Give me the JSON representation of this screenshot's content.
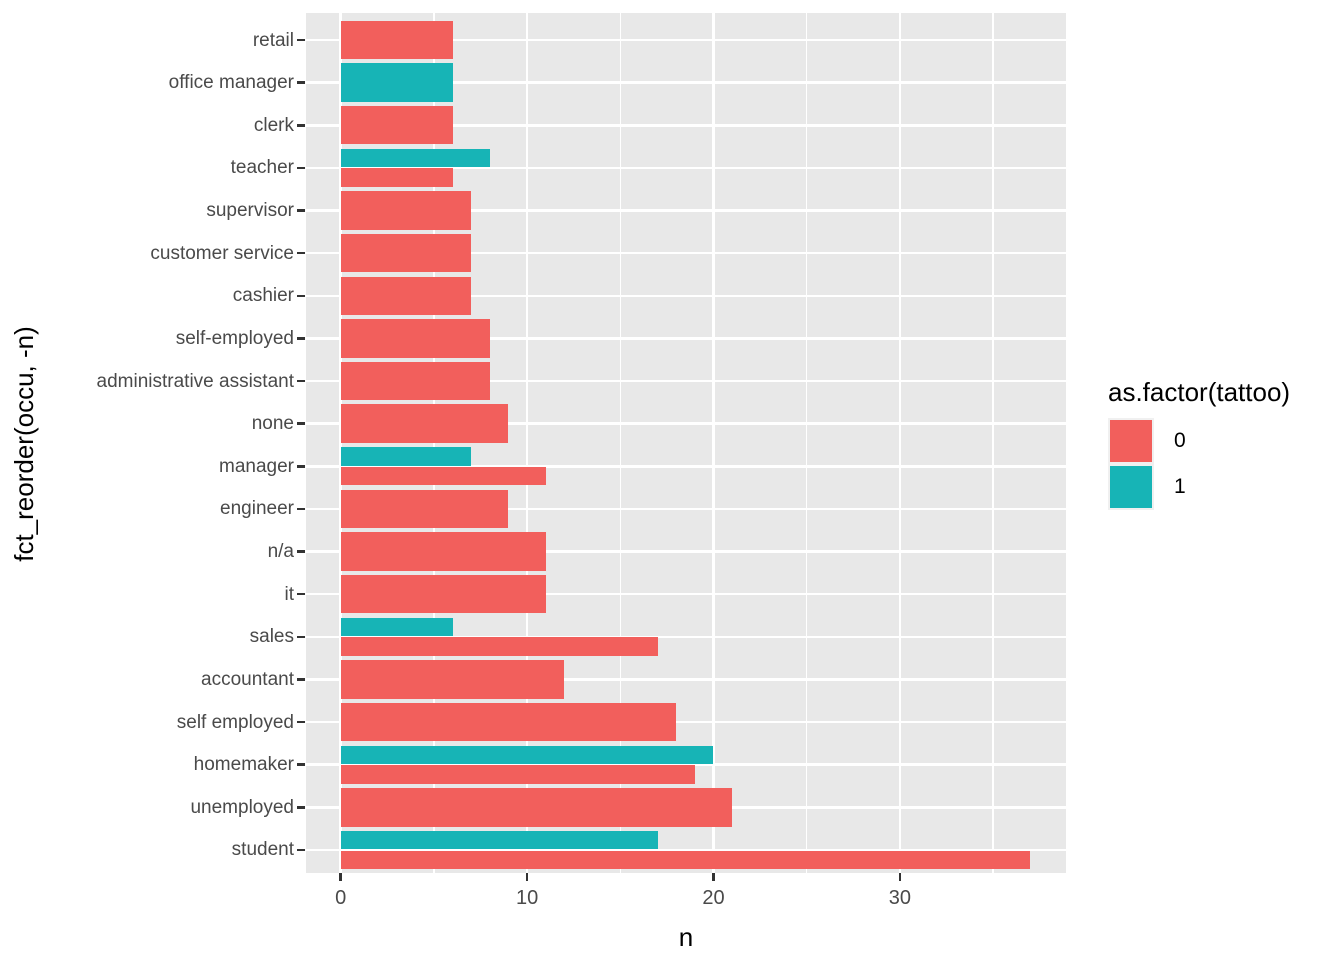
{
  "chart_data": {
    "type": "bar",
    "orientation": "horizontal",
    "title": "",
    "xlabel": "n",
    "ylabel": "fct_reorder(occu, -n)",
    "x_axis": {
      "major_ticks": [
        0,
        10,
        20,
        30
      ],
      "minor_gridlines": [
        5,
        15,
        25,
        35
      ],
      "range": [
        -1.85,
        38.85
      ]
    },
    "grid": true,
    "legend": {
      "title": "as.factor(tattoo)",
      "position": "right",
      "entries": [
        {
          "label": "0",
          "color": "#F25F5C"
        },
        {
          "label": "1",
          "color": "#17B4B6"
        }
      ]
    },
    "categories": [
      {
        "label": "retail",
        "bars": [
          {
            "group": "0",
            "value": 6
          }
        ]
      },
      {
        "label": "office manager",
        "bars": [
          {
            "group": "1",
            "value": 6
          }
        ]
      },
      {
        "label": "clerk",
        "bars": [
          {
            "group": "0",
            "value": 6
          }
        ]
      },
      {
        "label": "teacher",
        "bars": [
          {
            "group": "1",
            "value": 8
          },
          {
            "group": "0",
            "value": 6
          }
        ]
      },
      {
        "label": "supervisor",
        "bars": [
          {
            "group": "0",
            "value": 7
          }
        ]
      },
      {
        "label": "customer service",
        "bars": [
          {
            "group": "0",
            "value": 7
          }
        ]
      },
      {
        "label": "cashier",
        "bars": [
          {
            "group": "0",
            "value": 7
          }
        ]
      },
      {
        "label": "self-employed",
        "bars": [
          {
            "group": "0",
            "value": 8
          }
        ]
      },
      {
        "label": "administrative assistant",
        "bars": [
          {
            "group": "0",
            "value": 8
          }
        ]
      },
      {
        "label": "none",
        "bars": [
          {
            "group": "0",
            "value": 9
          }
        ]
      },
      {
        "label": "manager",
        "bars": [
          {
            "group": "1",
            "value": 7
          },
          {
            "group": "0",
            "value": 11
          }
        ]
      },
      {
        "label": "engineer",
        "bars": [
          {
            "group": "0",
            "value": 9
          }
        ]
      },
      {
        "label": "n/a",
        "bars": [
          {
            "group": "0",
            "value": 11
          }
        ]
      },
      {
        "label": "it",
        "bars": [
          {
            "group": "0",
            "value": 11
          }
        ]
      },
      {
        "label": "sales",
        "bars": [
          {
            "group": "1",
            "value": 6
          },
          {
            "group": "0",
            "value": 17
          }
        ]
      },
      {
        "label": "accountant",
        "bars": [
          {
            "group": "0",
            "value": 12
          }
        ]
      },
      {
        "label": "self employed",
        "bars": [
          {
            "group": "0",
            "value": 18
          }
        ]
      },
      {
        "label": "homemaker",
        "bars": [
          {
            "group": "1",
            "value": 20
          },
          {
            "group": "0",
            "value": 19
          }
        ]
      },
      {
        "label": "unemployed",
        "bars": [
          {
            "group": "0",
            "value": 21
          }
        ]
      },
      {
        "label": "student",
        "bars": [
          {
            "group": "1",
            "value": 17
          },
          {
            "group": "0",
            "value": 37
          }
        ]
      }
    ],
    "colors": {
      "group0": "#F25F5C",
      "group1": "#17B4B6",
      "panel_background": "#E8E8E8",
      "gridline": "#FFFFFF",
      "axis_text": "#4A4A4A",
      "tick_mark": "#333333",
      "title_text": "#000000"
    }
  }
}
